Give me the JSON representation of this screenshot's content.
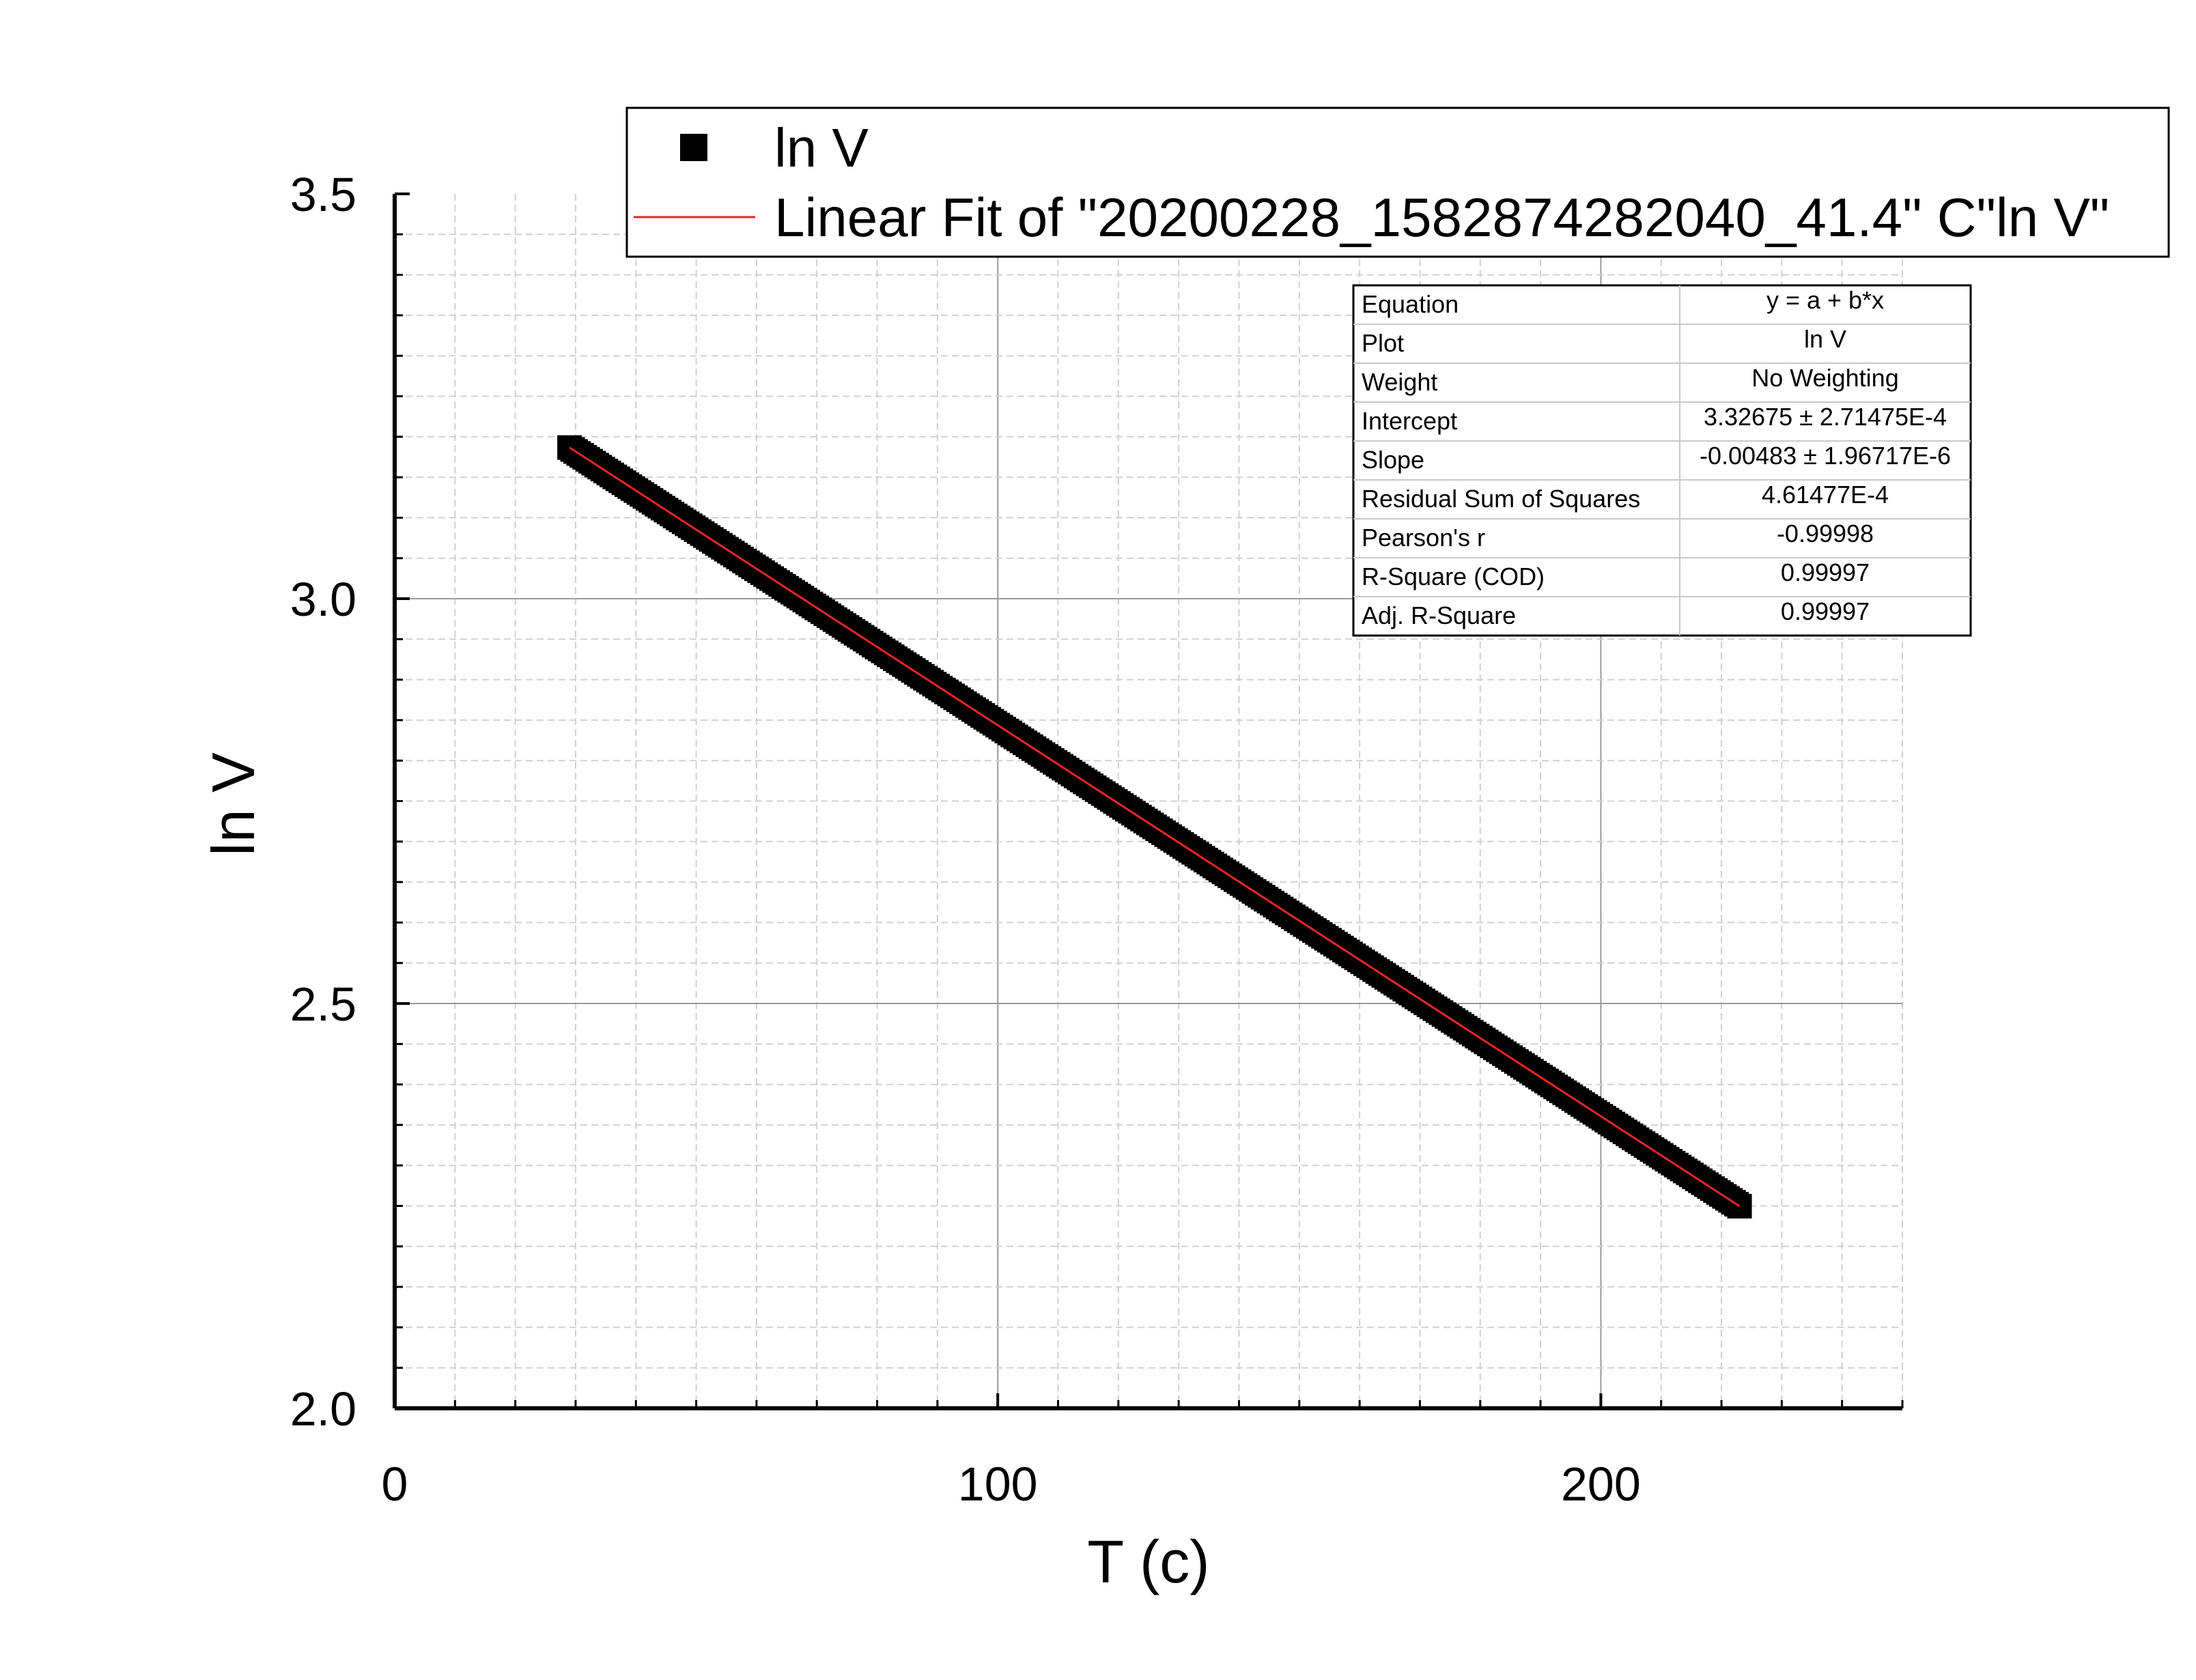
{
  "chart_data": {
    "type": "scatter",
    "xlabel": "T (c)",
    "ylabel": "ln V",
    "xlim": [
      0,
      250
    ],
    "ylim": [
      2.0,
      3.5
    ],
    "x_ticks": [
      0,
      100,
      200
    ],
    "x_tick_labels": [
      "0",
      "100",
      "200"
    ],
    "y_ticks": [
      2.0,
      2.5,
      3.0,
      3.5
    ],
    "y_tick_labels": [
      "2.0",
      "2.5",
      "3.0",
      "3.5"
    ],
    "grid": true,
    "series": [
      {
        "name": "ln V",
        "kind": "scatter",
        "marker": "square",
        "color": "#000000",
        "x_start": 29,
        "x_end": 223,
        "x_step": 0.5,
        "y_intercept": 3.32675,
        "y_slope": -0.00483
      },
      {
        "name": "Linear Fit of \"20200228_1582874282040_41.4\" C\"ln V\"",
        "kind": "line",
        "color": "#e8262a",
        "x": [
          29,
          223
        ],
        "y": [
          3.18668,
          2.24966
        ]
      }
    ],
    "legend": {
      "position": "top-right",
      "entries": [
        "ln V",
        "Linear Fit of \"20200228_1582874282040_41.4\" C\"ln V\""
      ]
    },
    "fit_table": [
      {
        "label": "Equation",
        "value": "y = a + b*x"
      },
      {
        "label": "Plot",
        "value": "ln V"
      },
      {
        "label": "Weight",
        "value": "No Weighting"
      },
      {
        "label": "Intercept",
        "value": "3.32675 ± 2.71475E-4"
      },
      {
        "label": "Slope",
        "value": "-0.00483 ± 1.96717E-6"
      },
      {
        "label": "Residual Sum of Squares",
        "value": "4.61477E-4"
      },
      {
        "label": "Pearson's r",
        "value": "-0.99998"
      },
      {
        "label": "R-Square (COD)",
        "value": "0.99997"
      },
      {
        "label": "Adj. R-Square",
        "value": "0.99997"
      }
    ]
  }
}
